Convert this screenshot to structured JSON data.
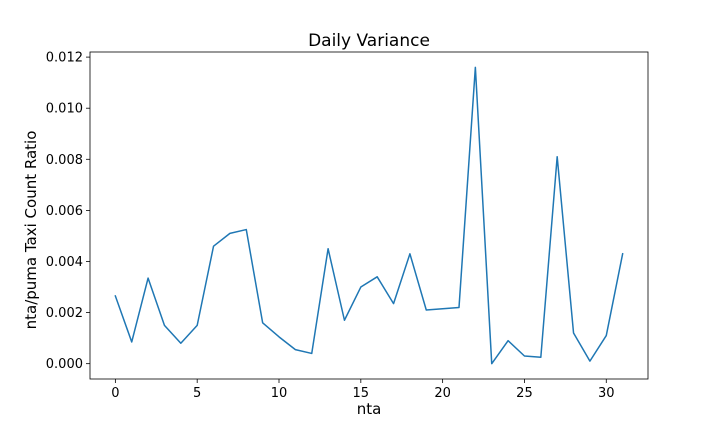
{
  "chart_data": {
    "type": "line",
    "title": "Daily Variance",
    "xlabel": "nta",
    "ylabel": "nta/puma Taxi Count Ratio",
    "xlim": [
      -1.55,
      32.55
    ],
    "ylim": [
      -0.0006,
      0.0122
    ],
    "xticks": [
      0,
      5,
      10,
      15,
      20,
      25,
      30
    ],
    "xtick_labels": [
      "0",
      "5",
      "10",
      "15",
      "20",
      "25",
      "30"
    ],
    "yticks": [
      0.0,
      0.002,
      0.004,
      0.006,
      0.008,
      0.01,
      0.012
    ],
    "ytick_labels": [
      "0.000",
      "0.002",
      "0.004",
      "0.006",
      "0.008",
      "0.010",
      "0.012"
    ],
    "grid": false,
    "series": [
      {
        "color": "#1f77b4",
        "x": [
          0,
          1,
          2,
          3,
          4,
          5,
          6,
          7,
          8,
          9,
          10,
          11,
          12,
          13,
          14,
          15,
          16,
          17,
          18,
          19,
          20,
          21,
          22,
          23,
          24,
          25,
          26,
          27,
          28,
          29,
          30,
          31
        ],
        "y": [
          0.00265,
          0.00085,
          0.00335,
          0.0015,
          0.0008,
          0.0015,
          0.0046,
          0.0051,
          0.00525,
          0.0016,
          0.00105,
          0.00055,
          0.0004,
          0.0045,
          0.0017,
          0.003,
          0.0034,
          0.00235,
          0.0043,
          0.0021,
          0.00215,
          0.0022,
          0.0116,
          0.0,
          0.0009,
          0.0003,
          0.00025,
          0.0081,
          0.0012,
          0.0001,
          0.0011,
          0.0043
        ]
      }
    ]
  }
}
